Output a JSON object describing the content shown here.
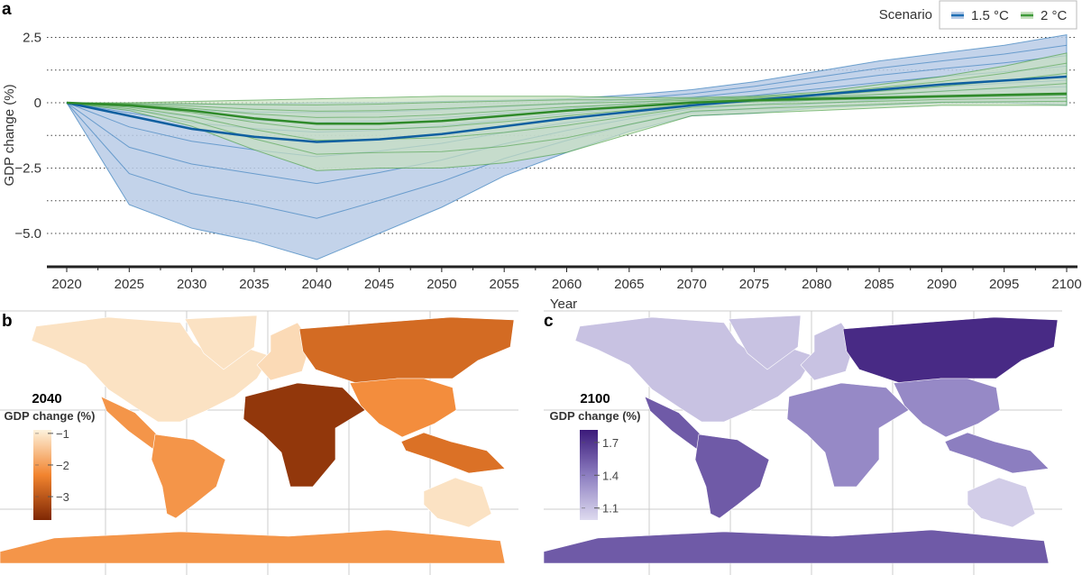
{
  "panels": {
    "a": "a",
    "b": "b",
    "c": "c"
  },
  "chart_data": {
    "type": "line",
    "xlabel": "Year",
    "ylabel": "GDP change (%)",
    "x": [
      2020,
      2025,
      2030,
      2035,
      2040,
      2045,
      2050,
      2055,
      2060,
      2065,
      2070,
      2075,
      2080,
      2085,
      2090,
      2095,
      2100
    ],
    "xticks": [
      "2020",
      "2025",
      "2030",
      "2035",
      "2040",
      "2045",
      "2050",
      "2055",
      "2060",
      "2065",
      "2070",
      "2075",
      "2080",
      "2085",
      "2090",
      "2095",
      "2100"
    ],
    "yticks": [
      {
        "value": 2.5,
        "label": "2.5"
      },
      {
        "value": 0,
        "label": "0"
      },
      {
        "value": -2.5,
        "label": "−2.5"
      },
      {
        "value": -5,
        "label": "−5.0"
      }
    ],
    "ylim": [
      -6.25,
      2.75
    ],
    "xlim": [
      2018,
      2101
    ],
    "grid": "horizontal dotted every 1.25",
    "legend": {
      "title": "Scenario",
      "placement": "top-right"
    },
    "series": [
      {
        "name": "1.5 °C",
        "color": "#1f6fb4",
        "band_color": "#b8cbe6",
        "central": [
          0,
          -0.5,
          -1.0,
          -1.3,
          -1.5,
          -1.4,
          -1.2,
          -0.9,
          -0.6,
          -0.35,
          -0.1,
          0.1,
          0.3,
          0.5,
          0.7,
          0.85,
          1.0
        ],
        "band_low": [
          0,
          -3.9,
          -4.8,
          -5.3,
          -6.0,
          -5.0,
          -4.0,
          -2.8,
          -1.9,
          -1.1,
          -0.5,
          -0.4,
          -0.2,
          -0.1,
          0,
          0,
          -0.1
        ],
        "band_high": [
          0,
          -0.05,
          -0.05,
          -0.05,
          0,
          0,
          0.05,
          0.1,
          0.15,
          0.3,
          0.5,
          0.8,
          1.2,
          1.6,
          1.9,
          2.2,
          2.6
        ]
      },
      {
        "name": "2 °C",
        "color": "#3f9a3a",
        "band_color": "#c7e0bf",
        "central": [
          0,
          -0.1,
          -0.3,
          -0.6,
          -0.8,
          -0.8,
          -0.7,
          -0.5,
          -0.3,
          -0.15,
          0,
          0.1,
          0.15,
          0.2,
          0.25,
          0.3,
          0.35
        ],
        "band_low": [
          0,
          -0.3,
          -0.9,
          -1.8,
          -2.6,
          -2.5,
          -2.5,
          -2.3,
          -1.9,
          -1.2,
          -0.5,
          -0.4,
          -0.3,
          -0.2,
          -0.1,
          -0.1,
          -0.1
        ],
        "band_high": [
          0,
          0,
          0.05,
          0.1,
          0.15,
          0.2,
          0.25,
          0.25,
          0.25,
          0.2,
          0.2,
          0.25,
          0.4,
          0.7,
          1.0,
          1.4,
          1.9
        ]
      }
    ]
  },
  "maps": [
    {
      "year": "2040",
      "label": "GDP change (%)",
      "ticks": [
        {
          "value": -1,
          "label": "−1"
        },
        {
          "value": -2,
          "label": "−2"
        },
        {
          "value": -3,
          "label": "−3"
        }
      ],
      "range": [
        -3.74,
        -0.89
      ],
      "color_low": "#7f2704",
      "color_mid": "#f2842f",
      "color_high": "#fdf2dc",
      "regions": {
        "north_america": -1.1,
        "greenland": -1.1,
        "latin_america": -2.1,
        "south_america": -2.1,
        "europe": -1.2,
        "russia": -2.7,
        "africa_me": -3.5,
        "asia": -2.2,
        "se_asia": -2.6,
        "oceania": -1.1,
        "antarctica": -2.1
      }
    },
    {
      "year": "2100",
      "label": "GDP change (%)",
      "ticks": [
        {
          "value": 1.7,
          "label": "1.7"
        },
        {
          "value": 1.4,
          "label": "1.4"
        },
        {
          "value": 1.1,
          "label": "1.1"
        }
      ],
      "range": [
        0.99,
        1.815
      ],
      "color_low": "#dedbef",
      "color_mid": "#8c7dc0",
      "color_high": "#3b1a7a",
      "regions": {
        "north_america": 1.1,
        "greenland": 1.1,
        "latin_america": 1.55,
        "south_america": 1.55,
        "europe": 1.1,
        "russia": 1.75,
        "africa_me": 1.35,
        "asia": 1.35,
        "se_asia": 1.4,
        "oceania": 1.05,
        "antarctica": 1.55
      }
    }
  ]
}
